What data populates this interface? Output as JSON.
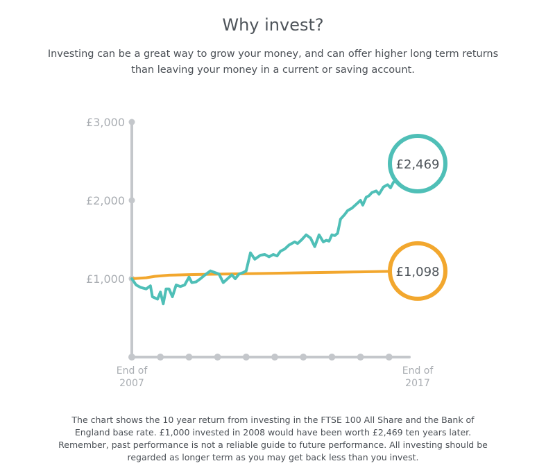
{
  "header": {
    "title": "Why invest?",
    "intro": "Investing can be a great way to grow your money, and can offer higher long term returns than leaving your money in a current or saving account."
  },
  "footnote": "The chart shows the 10 year return from investing in the FTSE 100 All Share and the Bank of England base rate. £1,000 invested in 2008 would have been worth £2,469 ten years later. Remember, past performance is not a reliable guide to future performance. All investing should be regarded as longer term as you may get back less than you invest.",
  "colors": {
    "ftse": "#4fbfb7",
    "base_rate": "#f2a72e",
    "axis": "#c4c7cb",
    "axis_label": "#a9adb2"
  },
  "chart_data": {
    "type": "line",
    "title": "",
    "xlabel": "",
    "ylabel": "",
    "xlim": [
      0,
      10
    ],
    "ylim": [
      0,
      3000
    ],
    "y_ticks": [
      {
        "value": 1000,
        "label": "£1,000"
      },
      {
        "value": 2000,
        "label": "£2,000"
      },
      {
        "value": 3000,
        "label": "£3,000"
      }
    ],
    "x_start_label": [
      "End of",
      "2007"
    ],
    "x_end_label": [
      "End of",
      "2017"
    ],
    "x_tick_positions": [
      0,
      1,
      2,
      3,
      4,
      5,
      6,
      7,
      8,
      9,
      10
    ],
    "grid": false,
    "series": [
      {
        "name": "",
        "color": "#4fbfb7",
        "end_label": "£2,469",
        "x": [
          0,
          0.15,
          0.3,
          0.5,
          0.65,
          0.72,
          0.9,
          1.0,
          1.1,
          1.2,
          1.3,
          1.42,
          1.55,
          1.7,
          1.85,
          2.0,
          2.1,
          2.25,
          2.4,
          2.6,
          2.75,
          2.9,
          3.05,
          3.2,
          3.35,
          3.5,
          3.62,
          3.75,
          3.9,
          4.0,
          4.15,
          4.3,
          4.5,
          4.65,
          4.8,
          4.95,
          5.08,
          5.2,
          5.35,
          5.5,
          5.7,
          5.8,
          5.95,
          6.1,
          6.25,
          6.4,
          6.55,
          6.7,
          6.8,
          6.9,
          7.0,
          7.1,
          7.2,
          7.3,
          7.45,
          7.55,
          7.7,
          7.85,
          8.0,
          8.08,
          8.2,
          8.3,
          8.4,
          8.55,
          8.65,
          8.8,
          8.95,
          9.05,
          9.15,
          9.25,
          9.35,
          9.5,
          9.65,
          9.75,
          9.85,
          10.0
        ],
        "values": [
          1000,
          920,
          890,
          870,
          910,
          770,
          740,
          830,
          680,
          870,
          870,
          770,
          920,
          900,
          920,
          1020,
          950,
          960,
          1000,
          1060,
          1100,
          1080,
          1060,
          950,
          1000,
          1050,
          1000,
          1060,
          1080,
          1100,
          1330,
          1250,
          1300,
          1310,
          1280,
          1310,
          1290,
          1350,
          1380,
          1430,
          1470,
          1450,
          1500,
          1560,
          1520,
          1410,
          1560,
          1470,
          1490,
          1480,
          1560,
          1550,
          1580,
          1760,
          1820,
          1870,
          1900,
          1950,
          2000,
          1940,
          2040,
          2060,
          2100,
          2120,
          2080,
          2170,
          2200,
          2160,
          2230,
          2260,
          2300,
          2320,
          2380,
          2400,
          2430,
          2469
        ]
      },
      {
        "name": "",
        "color": "#f2a72e",
        "end_label": "£1,098",
        "x": [
          0,
          0.5,
          0.8,
          1.3,
          2.0,
          3.0,
          4.0,
          5.0,
          6.0,
          7.0,
          8.0,
          9.0,
          10.0
        ],
        "values": [
          1000,
          1012,
          1030,
          1045,
          1052,
          1058,
          1064,
          1070,
          1076,
          1082,
          1088,
          1094,
          1098
        ]
      }
    ]
  }
}
